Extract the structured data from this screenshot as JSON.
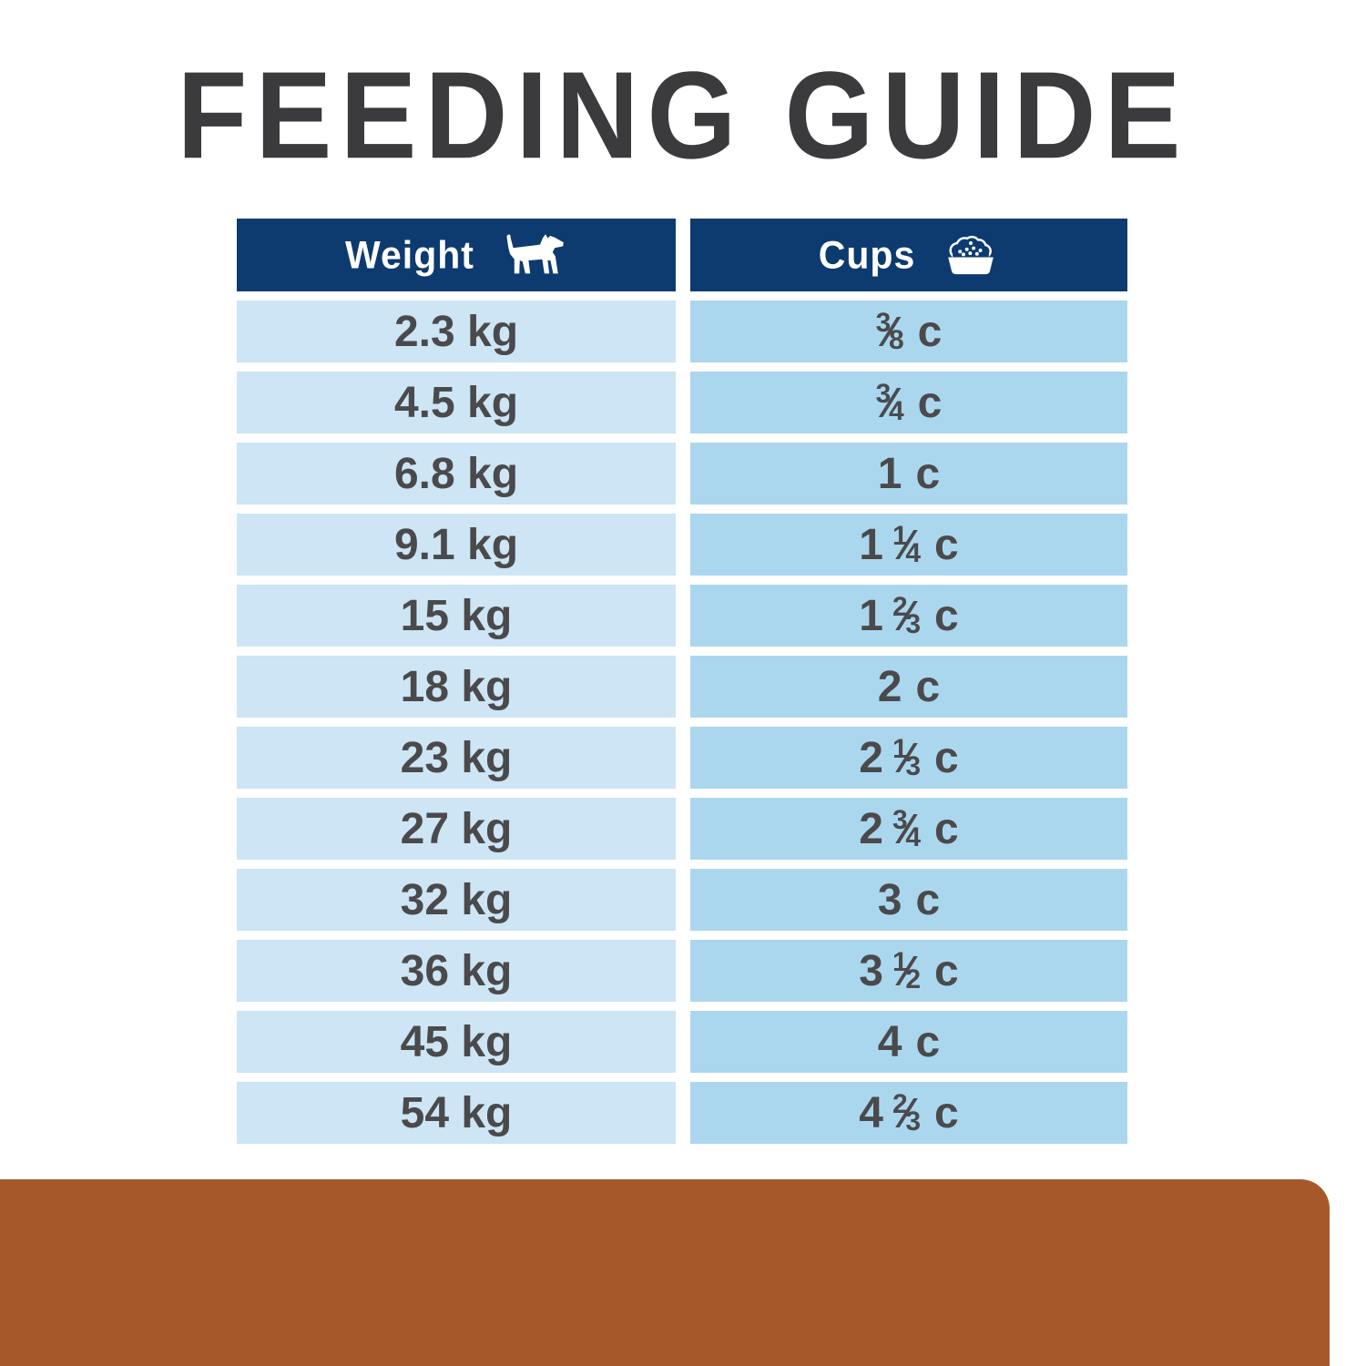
{
  "title": "FEEDING GUIDE",
  "table": {
    "columns": [
      {
        "label": "Weight",
        "icon": "dog-icon"
      },
      {
        "label": "Cups",
        "icon": "food-bowl-icon"
      }
    ],
    "cups_unit": "c",
    "rows": [
      {
        "weight": "2.3 kg",
        "cups": {
          "whole": "",
          "num": "3",
          "den": "8"
        }
      },
      {
        "weight": "4.5 kg",
        "cups": {
          "whole": "",
          "num": "3",
          "den": "4"
        }
      },
      {
        "weight": "6.8 kg",
        "cups": {
          "whole": "1",
          "num": "",
          "den": ""
        }
      },
      {
        "weight": "9.1 kg",
        "cups": {
          "whole": "1",
          "num": "1",
          "den": "4"
        }
      },
      {
        "weight": "15 kg",
        "cups": {
          "whole": "1",
          "num": "2",
          "den": "3"
        }
      },
      {
        "weight": "18 kg",
        "cups": {
          "whole": "2",
          "num": "",
          "den": ""
        }
      },
      {
        "weight": "23 kg",
        "cups": {
          "whole": "2",
          "num": "1",
          "den": "3"
        }
      },
      {
        "weight": "27 kg",
        "cups": {
          "whole": "2",
          "num": "3",
          "den": "4"
        }
      },
      {
        "weight": "32 kg",
        "cups": {
          "whole": "3",
          "num": "",
          "den": ""
        }
      },
      {
        "weight": "36 kg",
        "cups": {
          "whole": "3",
          "num": "1",
          "den": "2"
        }
      },
      {
        "weight": "45 kg",
        "cups": {
          "whole": "4",
          "num": "",
          "den": ""
        }
      },
      {
        "weight": "54 kg",
        "cups": {
          "whole": "4",
          "num": "2",
          "den": "3"
        }
      }
    ]
  },
  "chart_data": {
    "type": "table",
    "title": "FEEDING GUIDE",
    "columns": [
      "Weight",
      "Cups"
    ],
    "rows": [
      [
        "2.3 kg",
        "3/8 c"
      ],
      [
        "4.5 kg",
        "3/4 c"
      ],
      [
        "6.8 kg",
        "1 c"
      ],
      [
        "9.1 kg",
        "1 1/4 c"
      ],
      [
        "15 kg",
        "1 2/3 c"
      ],
      [
        "18 kg",
        "2 c"
      ],
      [
        "23 kg",
        "2 1/3 c"
      ],
      [
        "27 kg",
        "2 3/4 c"
      ],
      [
        "32 kg",
        "3 c"
      ],
      [
        "36 kg",
        "3 1/2 c"
      ],
      [
        "45 kg",
        "4 c"
      ],
      [
        "54 kg",
        "4 2/3 c"
      ]
    ]
  },
  "colors": {
    "title_text": "#3B3B3D",
    "header_bg": "#0D3B70",
    "header_text": "#FFFFFF",
    "weight_cell_bg": "#CDE5F4",
    "cups_cell_bg": "#ABD7EE",
    "cell_text": "#4A4A4C",
    "footer_bar": "#A7582B",
    "background": "#FFFFFF"
  }
}
